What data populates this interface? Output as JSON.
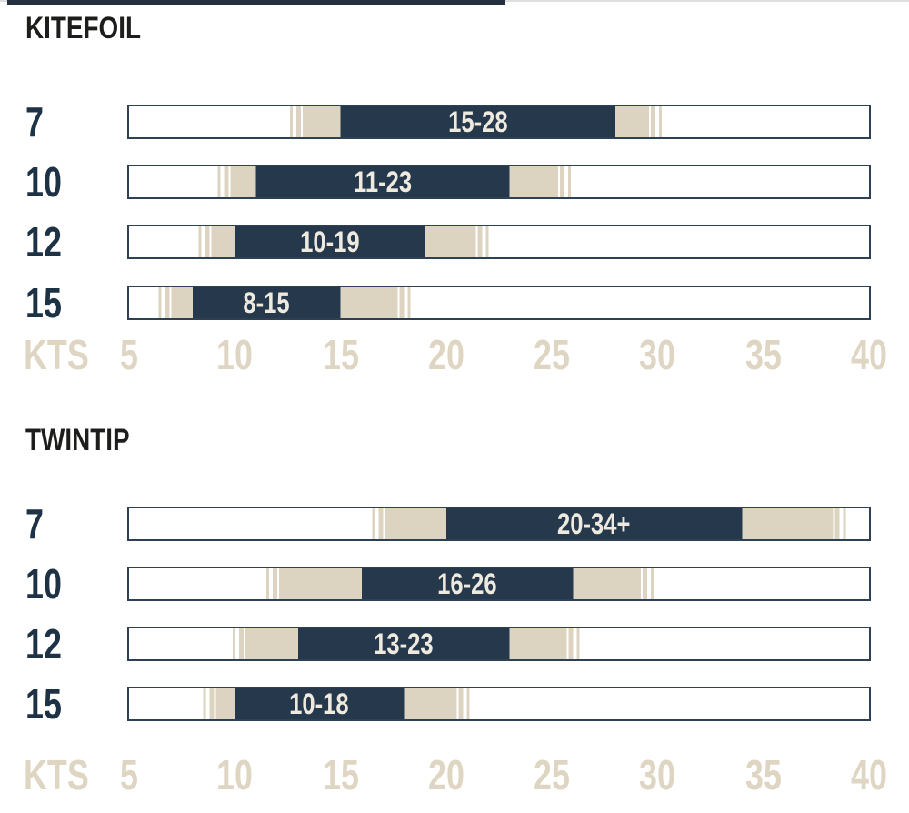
{
  "colors": {
    "navy": "#26384b",
    "beige": "#dcd4c1",
    "white": "#ffffff",
    "bar_border": "#2e4053",
    "axis_text": "#ded6c3",
    "bar_label_text": "#eeeae0",
    "row_label_text": "#1e3246",
    "title_text": "#1d1d1b",
    "top_bar_dark": "#223040",
    "top_bar_light": "#dfdfdf",
    "background": "#ffffff"
  },
  "chart_data": [
    {
      "type": "bar",
      "title": "KITEFOIL",
      "orientation": "horizontal",
      "axis": {
        "unit": "KTS",
        "min": 5,
        "max": 40,
        "ticks": [
          5,
          10,
          15,
          20,
          25,
          30,
          35,
          40
        ]
      },
      "rows": [
        {
          "size": "7",
          "label": "15-28",
          "range": [
            15,
            28
          ],
          "fade": [
            12.6,
            30.2
          ]
        },
        {
          "size": "10",
          "label": "11-23",
          "range": [
            11,
            23
          ],
          "fade": [
            9.2,
            25.9
          ]
        },
        {
          "size": "12",
          "label": "10-19",
          "range": [
            10,
            19
          ],
          "fade": [
            8.3,
            22.0
          ]
        },
        {
          "size": "15",
          "label": "8-15",
          "range": [
            8,
            15
          ],
          "fade": [
            6.4,
            18.3
          ]
        }
      ]
    },
    {
      "type": "bar",
      "title": "TWINTIP",
      "orientation": "horizontal",
      "axis": {
        "unit": "KTS",
        "min": 5,
        "max": 40,
        "ticks": [
          5,
          10,
          15,
          20,
          25,
          30,
          35,
          40
        ]
      },
      "rows": [
        {
          "size": "7",
          "label": "20-34+",
          "range": [
            20,
            34
          ],
          "fade": [
            16.5,
            38.9
          ]
        },
        {
          "size": "10",
          "label": "16-26",
          "range": [
            16,
            26
          ],
          "fade": [
            11.5,
            29.8
          ]
        },
        {
          "size": "12",
          "label": "13-23",
          "range": [
            13,
            23
          ],
          "fade": [
            9.9,
            26.3
          ]
        },
        {
          "size": "15",
          "label": "10-18",
          "range": [
            10,
            18
          ],
          "fade": [
            8.5,
            21.1
          ]
        }
      ]
    }
  ]
}
